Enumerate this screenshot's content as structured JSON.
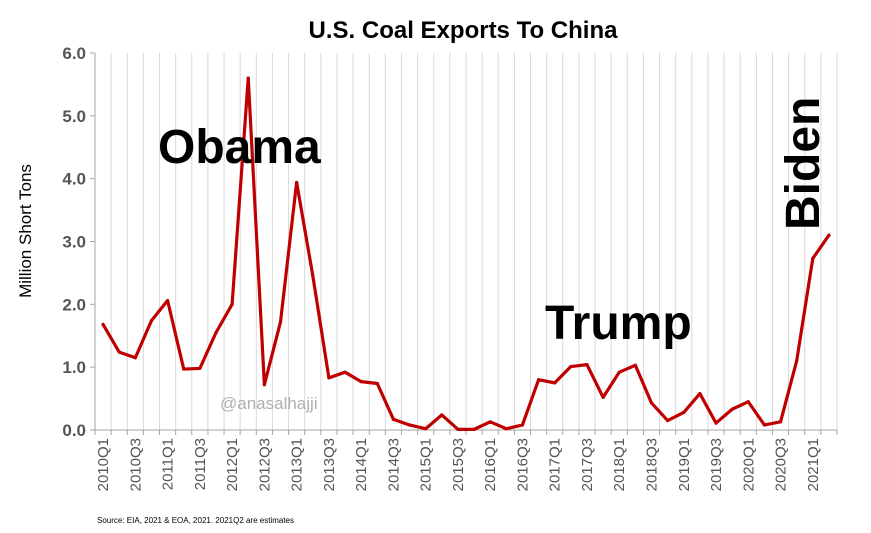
{
  "chart_data": {
    "type": "line",
    "title": "U.S. Coal Exports To China",
    "ylabel": "Million Short Tons",
    "xlabel": "",
    "ylim": [
      0,
      6
    ],
    "yticks": [
      "0.0",
      "1.0",
      "2.0",
      "3.0",
      "4.0",
      "5.0",
      "6.0"
    ],
    "grid": "vertical",
    "line_color": "#c00000",
    "categories": [
      "2010Q1",
      "2010Q2",
      "2010Q3",
      "2010Q4",
      "2011Q1",
      "2011Q2",
      "2011Q3",
      "2011Q4",
      "2012Q1",
      "2012Q2",
      "2012Q3",
      "2012Q4",
      "2013Q1",
      "2013Q2",
      "2013Q3",
      "2013Q4",
      "2014Q1",
      "2014Q2",
      "2014Q3",
      "2014Q4",
      "2015Q1",
      "2015Q2",
      "2015Q3",
      "2015Q4",
      "2016Q1",
      "2016Q2",
      "2016Q3",
      "2016Q4",
      "2017Q1",
      "2017Q2",
      "2017Q3",
      "2017Q4",
      "2018Q1",
      "2018Q2",
      "2018Q3",
      "2018Q4",
      "2019Q1",
      "2019Q2",
      "2019Q3",
      "2019Q4",
      "2020Q1",
      "2020Q2",
      "2020Q3",
      "2020Q4",
      "2021Q1",
      "2021Q2"
    ],
    "tick_labels": [
      "2010Q1",
      "2010Q3",
      "2011Q1",
      "2011Q3",
      "2012Q1",
      "2012Q3",
      "2013Q1",
      "2013Q3",
      "2014Q1",
      "2014Q3",
      "2015Q1",
      "2015Q3",
      "2016Q1",
      "2016Q3",
      "2017Q1",
      "2017Q3",
      "2018Q1",
      "2018Q3",
      "2019Q1",
      "2019Q3",
      "2020Q1",
      "2020Q3",
      "2021Q1"
    ],
    "values": [
      1.68,
      1.24,
      1.15,
      1.74,
      2.06,
      0.97,
      0.98,
      1.55,
      2.0,
      5.6,
      0.72,
      1.72,
      3.94,
      2.46,
      0.83,
      0.92,
      0.77,
      0.74,
      0.17,
      0.08,
      0.02,
      0.24,
      0.01,
      0.01,
      0.13,
      0.02,
      0.08,
      0.8,
      0.75,
      1.01,
      1.04,
      0.52,
      0.92,
      1.03,
      0.43,
      0.15,
      0.28,
      0.58,
      0.11,
      0.33,
      0.45,
      0.08,
      0.13,
      1.1,
      2.73,
      3.1
    ],
    "annotations": [
      "Obama",
      "Trump",
      "Biden"
    ]
  },
  "watermark": "@anasalhajji",
  "source": "Source: EIA, 2021 & EOA, 2021. 2021Q2 are estimates"
}
